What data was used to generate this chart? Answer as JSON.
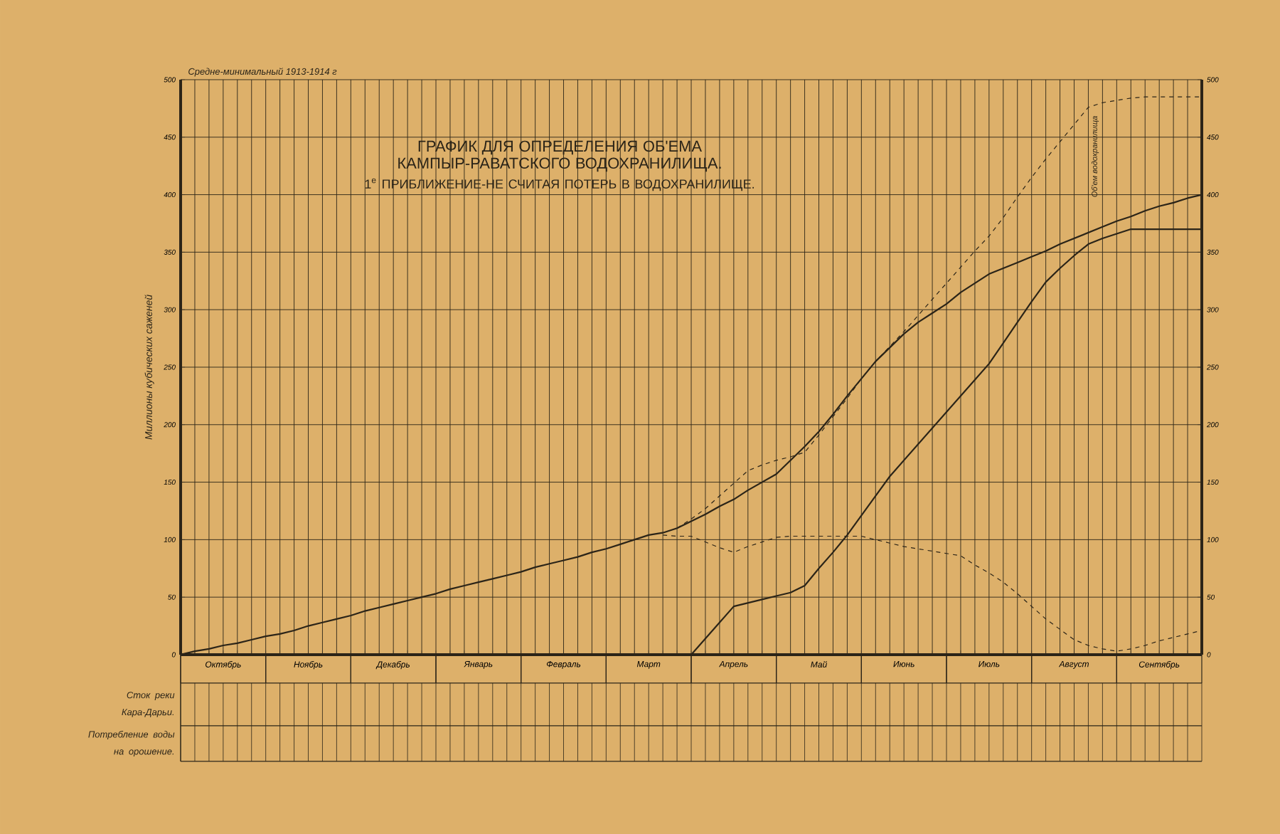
{
  "chart_data": {
    "type": "line",
    "title": "ГРАФИК ДЛЯ ОПРЕДЕЛЕНИЯ ОБ'ЕМА КАМПЫР-РАВАТСКОГО ВОДОХРАНИЛИЩА.",
    "subtitle": "1$^{е}$ ПРИБЛИЖЕНИЕ-НЕ СЧИТАЯ ПОТЕРЬ В ВОДОХРАНИЛИЩЕ.",
    "ylabel": "Миллионы кубических саженей",
    "annotations": [
      "Средне-минимальный 1913-1914 г",
      "Сток реки Кара-Дарьи.",
      "Потребление воды на орошение.",
      "Об'ем водохранилища"
    ],
    "categories": [
      null,
      null,
      null,
      "Октябрь",
      null,
      null,
      null,
      null,
      null,
      "Ноябрь",
      null,
      null,
      null,
      null,
      null,
      "Декабрь",
      null,
      null,
      null,
      null,
      null,
      "Январь",
      null,
      null,
      null,
      null,
      null,
      "Февраль",
      null,
      null,
      null,
      null,
      null,
      "Март",
      null,
      null,
      null,
      null,
      null,
      "Апрель",
      null,
      null,
      null,
      null,
      null,
      "Май",
      null,
      null,
      null,
      null,
      null,
      "Июнь",
      null,
      null,
      null,
      null,
      null,
      "Июль",
      null,
      null,
      null,
      null,
      null,
      "Август",
      null,
      null,
      null,
      null,
      null,
      "Сентябрь",
      null,
      null,
      null
    ],
    "ylim": [
      0,
      500
    ],
    "y2lim": [
      0,
      500
    ],
    "yticks": [
      0,
      50,
      100,
      150,
      200,
      250,
      300,
      350,
      400,
      450,
      500
    ],
    "y2ticks": [
      0,
      50,
      100,
      150,
      200,
      250,
      300,
      350,
      400,
      450,
      500
    ],
    "grid": true,
    "series": [
      {
        "color": "#2b2418",
        "line_style": "solid",
        "values": [
          0,
          3,
          5,
          8,
          10,
          13,
          16,
          18,
          21,
          25,
          28,
          31,
          34,
          38,
          41,
          44,
          47,
          50,
          53,
          57,
          60,
          63,
          66,
          69,
          72,
          76,
          79,
          82,
          85,
          89,
          92,
          96,
          100,
          104,
          106,
          110,
          116,
          122,
          129,
          135,
          143,
          150,
          157,
          169,
          181,
          194,
          209,
          225,
          240,
          255,
          267,
          279,
          289,
          297,
          305,
          315,
          323,
          331,
          336,
          341,
          346,
          351,
          357,
          362,
          367,
          372,
          377,
          381,
          386,
          390,
          393,
          397,
          400
        ]
      },
      {
        "color": "#2b2418",
        "line_style": "dashed",
        "values": [
          null,
          null,
          null,
          null,
          null,
          null,
          null,
          null,
          null,
          null,
          null,
          null,
          null,
          null,
          null,
          null,
          null,
          null,
          null,
          null,
          null,
          null,
          null,
          null,
          null,
          null,
          null,
          null,
          null,
          null,
          null,
          null,
          null,
          null,
          null,
          110,
          118,
          127,
          138,
          149,
          160,
          165,
          169,
          172,
          176,
          191,
          207,
          223,
          240,
          255,
          268,
          281,
          295,
          309,
          323,
          337,
          351,
          364,
          380,
          398,
          415,
          431,
          446,
          461,
          476,
          480,
          482,
          484,
          485,
          485,
          485,
          485,
          485
        ]
      },
      {
        "color": "#2b2418",
        "line_style": "solid",
        "values": [
          null,
          null,
          null,
          null,
          null,
          null,
          null,
          null,
          null,
          null,
          null,
          null,
          null,
          null,
          null,
          null,
          null,
          null,
          null,
          null,
          null,
          null,
          null,
          null,
          null,
          null,
          null,
          null,
          null,
          null,
          null,
          null,
          null,
          null,
          null,
          null,
          0,
          14,
          28,
          42,
          45,
          48,
          51,
          54,
          60,
          75,
          89,
          104,
          121,
          138,
          155,
          169,
          183,
          197,
          211,
          225,
          239,
          253,
          271,
          289,
          307,
          324,
          336,
          347,
          357,
          362,
          366,
          370,
          370,
          370,
          370,
          370,
          370
        ]
      },
      {
        "color": "#2b2418",
        "line_style": "dashed",
        "axis": "y2",
        "values": [
          null,
          null,
          null,
          null,
          null,
          null,
          null,
          null,
          null,
          null,
          null,
          null,
          null,
          null,
          null,
          null,
          null,
          null,
          null,
          null,
          null,
          null,
          null,
          null,
          null,
          null,
          null,
          null,
          null,
          null,
          null,
          null,
          null,
          null,
          104,
          103,
          103,
          98,
          93,
          89,
          94,
          98,
          102,
          103,
          103,
          103,
          103,
          103,
          103,
          100,
          97,
          94,
          92,
          90,
          88,
          86,
          78,
          71,
          63,
          53,
          42,
          31,
          22,
          13,
          8,
          5,
          3,
          5,
          8,
          12,
          15,
          18,
          21
        ]
      }
    ]
  }
}
